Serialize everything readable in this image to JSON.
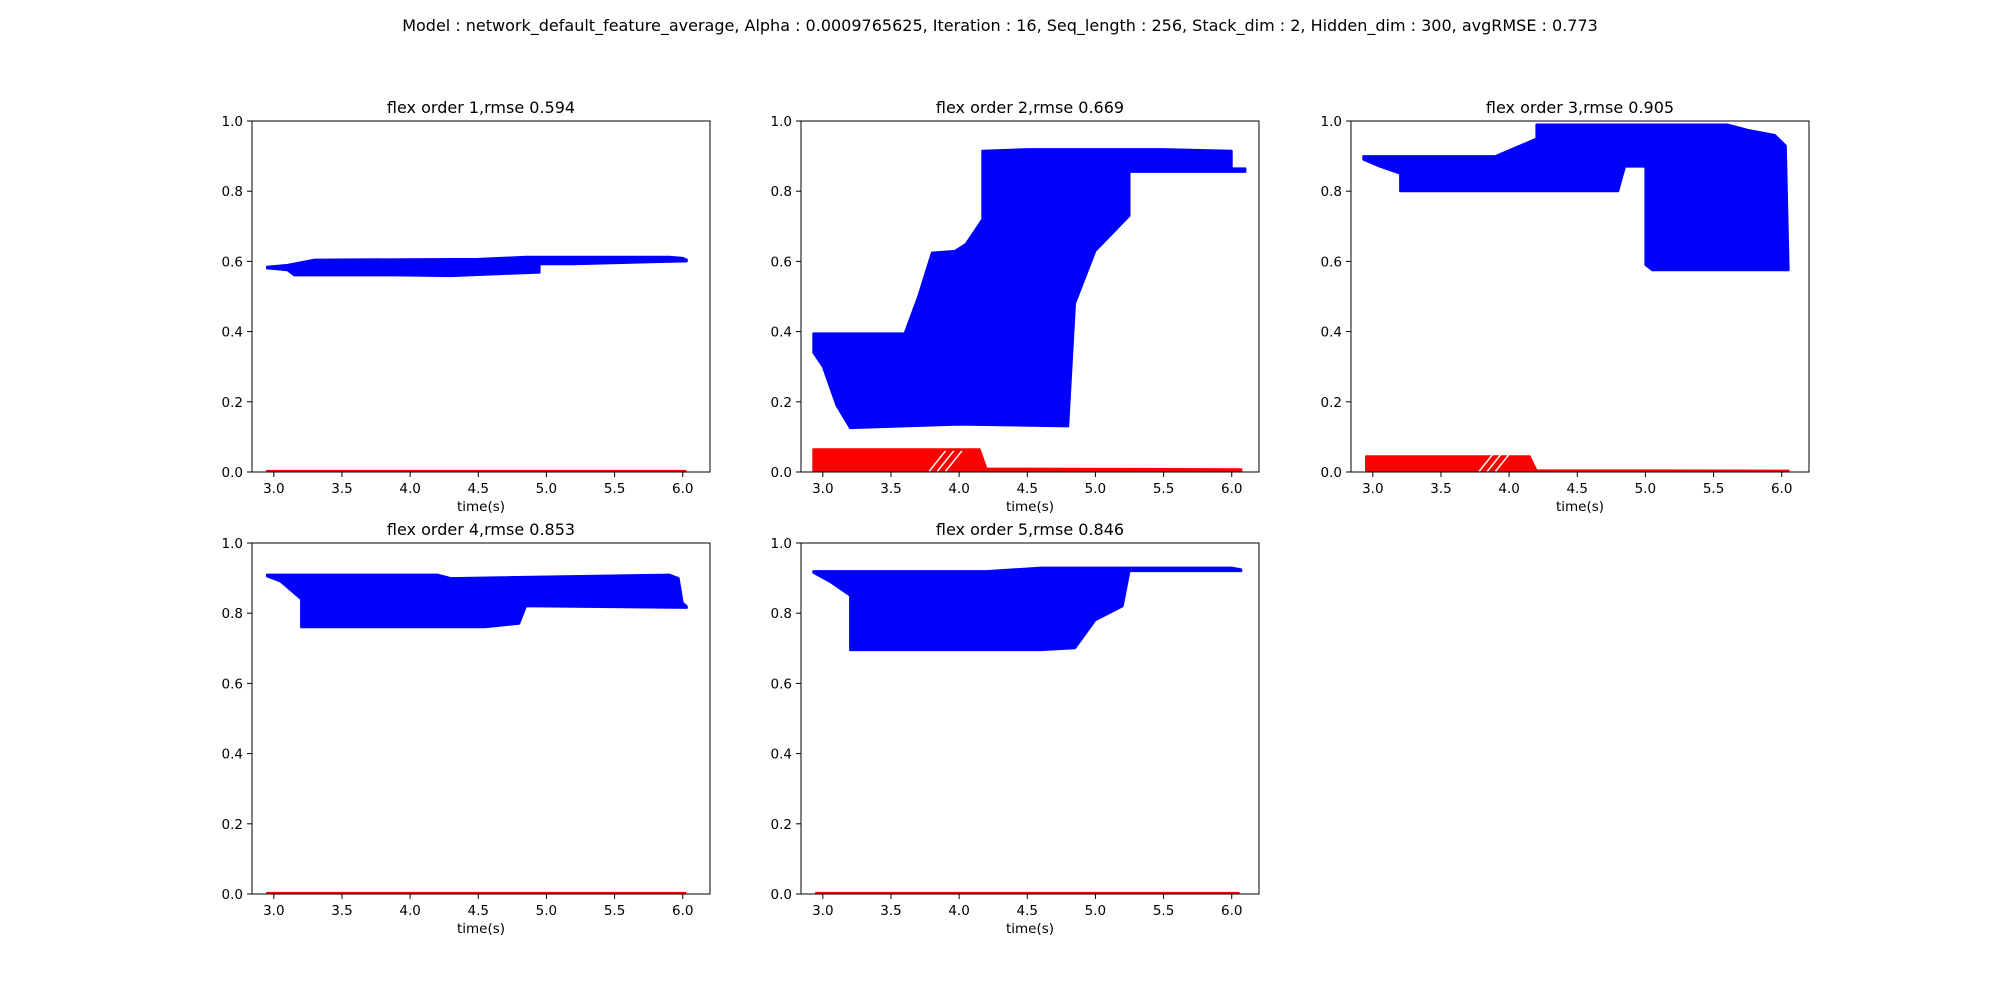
{
  "suptitle": "Model : network_default_feature_average, Alpha : 0.0009765625, Iteration : 16, Seq_length : 256, Stack_dim : 2, Hidden_dim : 300, avgRMSE : 0.773",
  "colors": {
    "prediction": "#0000ff",
    "target": "#ff0000",
    "axes": "#000000",
    "background": "#ffffff"
  },
  "chart_data": [
    {
      "type": "line",
      "title": "flex order 1,rmse 0.594",
      "xlabel": "time(s)",
      "ylabel": "",
      "xlim": [
        2.84,
        6.2
      ],
      "ylim": [
        0,
        1
      ],
      "xticks": [
        3.0,
        3.5,
        4.0,
        4.5,
        5.0,
        5.5,
        6.0
      ],
      "yticks": [
        0.0,
        0.2,
        0.4,
        0.6,
        0.8,
        1.0
      ],
      "tick_labels_x": [
        "3.0",
        "3.5",
        "4.0",
        "4.5",
        "5.0",
        "5.5",
        "6.0"
      ],
      "tick_labels_y": [
        "0.0",
        "0.2",
        "0.4",
        "0.6",
        "0.8",
        "1.0"
      ],
      "grid": false,
      "series": [
        {
          "role": "prediction",
          "color": "#0000ff",
          "upper": [
            [
              2.95,
              0.585
            ],
            [
              3.1,
              0.59
            ],
            [
              3.3,
              0.605
            ],
            [
              4.5,
              0.607
            ],
            [
              4.85,
              0.613
            ],
            [
              5.9,
              0.613
            ],
            [
              6.0,
              0.61
            ],
            [
              6.03,
              0.605
            ]
          ],
          "lower": [
            [
              6.03,
              0.6
            ],
            [
              5.2,
              0.592
            ],
            [
              4.95,
              0.592
            ],
            [
              4.95,
              0.568
            ],
            [
              4.3,
              0.558
            ],
            [
              3.9,
              0.56
            ],
            [
              3.15,
              0.56
            ],
            [
              3.1,
              0.575
            ],
            [
              2.95,
              0.58
            ]
          ]
        },
        {
          "role": "target",
          "color": "#ff0000",
          "upper": [
            [
              2.95,
              0.003
            ],
            [
              6.02,
              0.003
            ]
          ],
          "lower": [
            [
              6.02,
              0.0
            ],
            [
              2.95,
              0.0
            ]
          ]
        }
      ]
    },
    {
      "type": "line",
      "title": "flex order 2,rmse 0.669",
      "xlabel": "time(s)",
      "ylabel": "",
      "xlim": [
        2.84,
        6.2
      ],
      "ylim": [
        0,
        1
      ],
      "xticks": [
        3.0,
        3.5,
        4.0,
        4.5,
        5.0,
        5.5,
        6.0
      ],
      "yticks": [
        0.0,
        0.2,
        0.4,
        0.6,
        0.8,
        1.0
      ],
      "tick_labels_x": [
        "3.0",
        "3.5",
        "4.0",
        "4.5",
        "5.0",
        "5.5",
        "6.0"
      ],
      "tick_labels_y": [
        "0.0",
        "0.2",
        "0.4",
        "0.6",
        "0.8",
        "1.0"
      ],
      "grid": false,
      "series": [
        {
          "role": "prediction",
          "color": "#0000ff",
          "upper": [
            [
              2.93,
              0.395
            ],
            [
              3.6,
              0.395
            ],
            [
              3.7,
              0.5
            ],
            [
              3.8,
              0.625
            ],
            [
              3.97,
              0.63
            ],
            [
              4.05,
              0.65
            ],
            [
              4.17,
              0.72
            ],
            [
              4.17,
              0.915
            ],
            [
              4.5,
              0.92
            ],
            [
              5.5,
              0.92
            ],
            [
              6.0,
              0.915
            ],
            [
              6.0,
              0.865
            ],
            [
              6.1,
              0.865
            ]
          ],
          "lower": [
            [
              6.1,
              0.855
            ],
            [
              5.25,
              0.855
            ],
            [
              5.25,
              0.73
            ],
            [
              5.0,
              0.63
            ],
            [
              4.85,
              0.48
            ],
            [
              4.8,
              0.13
            ],
            [
              4.0,
              0.135
            ],
            [
              3.2,
              0.125
            ],
            [
              3.1,
              0.19
            ],
            [
              3.0,
              0.3
            ],
            [
              2.93,
              0.34
            ]
          ]
        },
        {
          "role": "target",
          "color": "#ff0000",
          "upper": [
            [
              2.93,
              0.065
            ],
            [
              4.15,
              0.065
            ],
            [
              4.2,
              0.01
            ],
            [
              6.07,
              0.008
            ]
          ],
          "lower": [
            [
              6.07,
              0.0
            ],
            [
              2.93,
              0.0
            ]
          ]
        }
      ]
    },
    {
      "type": "line",
      "title": "flex order 3,rmse 0.905",
      "xlabel": "time(s)",
      "ylabel": "",
      "xlim": [
        2.84,
        6.2
      ],
      "ylim": [
        0,
        1
      ],
      "xticks": [
        3.0,
        3.5,
        4.0,
        4.5,
        5.0,
        5.5,
        6.0
      ],
      "yticks": [
        0.0,
        0.2,
        0.4,
        0.6,
        0.8,
        1.0
      ],
      "tick_labels_x": [
        "3.0",
        "3.5",
        "4.0",
        "4.5",
        "5.0",
        "5.5",
        "6.0"
      ],
      "tick_labels_y": [
        "0.0",
        "0.2",
        "0.4",
        "0.6",
        "0.8",
        "1.0"
      ],
      "grid": false,
      "series": [
        {
          "role": "prediction",
          "color": "#0000ff",
          "upper": [
            [
              2.93,
              0.9
            ],
            [
              3.9,
              0.9
            ],
            [
              4.2,
              0.95
            ],
            [
              4.2,
              0.99
            ],
            [
              5.6,
              0.99
            ],
            [
              5.75,
              0.975
            ],
            [
              5.95,
              0.96
            ],
            [
              6.03,
              0.93
            ],
            [
              6.05,
              0.58
            ]
          ],
          "lower": [
            [
              6.05,
              0.575
            ],
            [
              5.05,
              0.575
            ],
            [
              5.0,
              0.59
            ],
            [
              5.0,
              0.87
            ],
            [
              4.85,
              0.87
            ],
            [
              4.8,
              0.8
            ],
            [
              3.2,
              0.8
            ],
            [
              3.2,
              0.85
            ],
            [
              3.05,
              0.87
            ],
            [
              2.93,
              0.89
            ]
          ]
        },
        {
          "role": "target",
          "color": "#ff0000",
          "upper": [
            [
              2.95,
              0.045
            ],
            [
              4.15,
              0.045
            ],
            [
              4.2,
              0.005
            ],
            [
              6.05,
              0.004
            ]
          ],
          "lower": [
            [
              6.05,
              0.0
            ],
            [
              2.95,
              0.0
            ]
          ]
        }
      ]
    },
    {
      "type": "line",
      "title": "flex order 4,rmse 0.853",
      "xlabel": "time(s)",
      "ylabel": "",
      "xlim": [
        2.84,
        6.2
      ],
      "ylim": [
        0,
        1
      ],
      "xticks": [
        3.0,
        3.5,
        4.0,
        4.5,
        5.0,
        5.5,
        6.0
      ],
      "yticks": [
        0.0,
        0.2,
        0.4,
        0.6,
        0.8,
        1.0
      ],
      "tick_labels_x": [
        "3.0",
        "3.5",
        "4.0",
        "4.5",
        "5.0",
        "5.5",
        "6.0"
      ],
      "tick_labels_y": [
        "0.0",
        "0.2",
        "0.4",
        "0.6",
        "0.8",
        "1.0"
      ],
      "grid": false,
      "series": [
        {
          "role": "prediction",
          "color": "#0000ff",
          "upper": [
            [
              2.95,
              0.91
            ],
            [
              4.2,
              0.91
            ],
            [
              4.3,
              0.9
            ],
            [
              5.9,
              0.91
            ],
            [
              5.97,
              0.9
            ],
            [
              6.0,
              0.83
            ],
            [
              6.03,
              0.82
            ]
          ],
          "lower": [
            [
              6.03,
              0.815
            ],
            [
              4.85,
              0.82
            ],
            [
              4.8,
              0.77
            ],
            [
              4.55,
              0.76
            ],
            [
              3.2,
              0.76
            ],
            [
              3.2,
              0.84
            ],
            [
              3.05,
              0.89
            ],
            [
              2.95,
              0.905
            ]
          ]
        },
        {
          "role": "target",
          "color": "#ff0000",
          "upper": [
            [
              2.95,
              0.003
            ],
            [
              6.02,
              0.003
            ]
          ],
          "lower": [
            [
              6.02,
              0.0
            ],
            [
              2.95,
              0.0
            ]
          ]
        }
      ]
    },
    {
      "type": "line",
      "title": "flex order 5,rmse 0.846",
      "xlabel": "time(s)",
      "ylabel": "",
      "xlim": [
        2.84,
        6.2
      ],
      "ylim": [
        0,
        1
      ],
      "xticks": [
        3.0,
        3.5,
        4.0,
        4.5,
        5.0,
        5.5,
        6.0
      ],
      "yticks": [
        0.0,
        0.2,
        0.4,
        0.6,
        0.8,
        1.0
      ],
      "tick_labels_x": [
        "3.0",
        "3.5",
        "4.0",
        "4.5",
        "5.0",
        "5.5",
        "6.0"
      ],
      "tick_labels_y": [
        "0.0",
        "0.2",
        "0.4",
        "0.6",
        "0.8",
        "1.0"
      ],
      "grid": false,
      "series": [
        {
          "role": "prediction",
          "color": "#0000ff",
          "upper": [
            [
              2.93,
              0.92
            ],
            [
              4.2,
              0.92
            ],
            [
              4.6,
              0.93
            ],
            [
              6.0,
              0.93
            ],
            [
              6.07,
              0.925
            ]
          ],
          "lower": [
            [
              6.07,
              0.92
            ],
            [
              5.25,
              0.92
            ],
            [
              5.2,
              0.82
            ],
            [
              5.0,
              0.78
            ],
            [
              4.85,
              0.7
            ],
            [
              4.6,
              0.695
            ],
            [
              3.2,
              0.695
            ],
            [
              3.2,
              0.85
            ],
            [
              3.05,
              0.89
            ],
            [
              2.93,
              0.915
            ]
          ]
        },
        {
          "role": "target",
          "color": "#ff0000",
          "upper": [
            [
              2.95,
              0.003
            ],
            [
              6.05,
              0.003
            ]
          ],
          "lower": [
            [
              6.05,
              0.0
            ],
            [
              2.95,
              0.0
            ]
          ]
        }
      ]
    }
  ]
}
